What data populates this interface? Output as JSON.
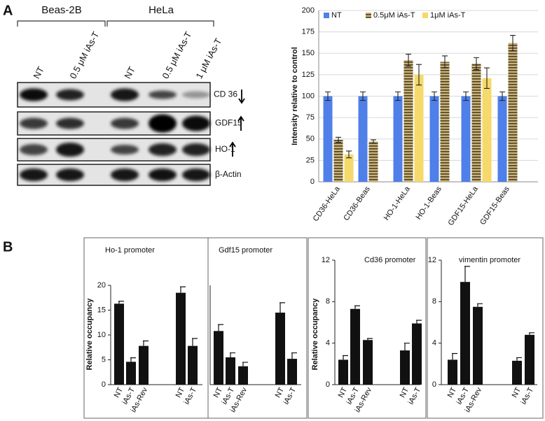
{
  "label_a": "A",
  "label_b": "B",
  "blot": {
    "groups": [
      "Beas-2B",
      "HeLa"
    ],
    "lanes": [
      "NT",
      "0.5 μM iAs-T",
      "NT",
      "0.5 μM iAs-T",
      "1 μM iAs-T"
    ],
    "rows": [
      "CD 36",
      "GDF15",
      "HO-1",
      "β-Actin"
    ]
  },
  "chart_data": [
    {
      "type": "bar",
      "ylabel": "Intensity relative to control",
      "categories": [
        "CD36-HeLa",
        "CD36-Beas",
        "HO-1-HeLa",
        "HO-1-Beas",
        "GDF15-HeLa",
        "GDF15-Beas"
      ],
      "series": [
        {
          "name": "NT",
          "color": "#4f7fe8",
          "values": [
            100,
            100,
            100,
            100,
            100,
            100
          ],
          "errors": [
            5,
            5,
            5,
            5,
            5,
            5
          ]
        },
        {
          "name": "0.5μM iAs-T",
          "color": "#c9b27a",
          "hatch": true,
          "values": [
            49,
            47,
            142,
            140,
            138,
            162
          ],
          "errors": [
            3,
            2,
            7,
            7,
            7,
            9
          ]
        },
        {
          "name": "1μM iAs-T",
          "color": "#f5d96a",
          "values": [
            32,
            null,
            125,
            null,
            121,
            null
          ],
          "errors": [
            4,
            null,
            12,
            null,
            12,
            null
          ]
        }
      ],
      "ylim": [
        0,
        200
      ],
      "yticks": [
        0,
        25,
        50,
        75,
        100,
        125,
        150,
        175,
        200
      ],
      "grid": true,
      "legend": "top"
    },
    {
      "type": "bar",
      "title": "Ho-1 promoter",
      "ylabel": "Relative occupancy",
      "categories": [
        "NT",
        "iAs-T",
        "iAs-Rev",
        "NT",
        "iAs-T"
      ],
      "values": [
        16.3,
        4.6,
        7.8,
        18.5,
        7.8
      ],
      "errors": [
        0.5,
        0.8,
        1.0,
        1.2,
        1.5
      ],
      "color": "#111111",
      "ylim": [
        0,
        20
      ],
      "yticks": [
        0,
        5,
        10,
        15,
        20
      ]
    },
    {
      "type": "bar",
      "title": "Gdf15 promoter",
      "categories": [
        "NT",
        "iAs-T",
        "iAs-Rev",
        "NT",
        "iAs-T"
      ],
      "values": [
        10.8,
        5.5,
        3.7,
        14.5,
        5.2
      ],
      "errors": [
        1.3,
        0.9,
        0.8,
        2.0,
        1.2
      ],
      "color": "#111111",
      "ylim": [
        0,
        20
      ]
    },
    {
      "type": "bar",
      "title": "Cd36 promoter",
      "ylabel": "Relative occupancy",
      "categories": [
        "NT",
        "iAs-T",
        "iAs-Rev",
        "NT",
        "iAs-T"
      ],
      "values": [
        2.4,
        7.3,
        4.3,
        3.3,
        5.9
      ],
      "errors": [
        0.4,
        0.3,
        0.15,
        0.7,
        0.3
      ],
      "color": "#111111",
      "ylim": [
        0,
        12
      ],
      "yticks": [
        0,
        4,
        8,
        12
      ]
    },
    {
      "type": "bar",
      "title": "vimentin promoter",
      "categories": [
        "NT",
        "iAs-T",
        "iAs-Rev",
        "NT",
        "iAs-T"
      ],
      "values": [
        2.4,
        9.9,
        7.5,
        2.3,
        4.8
      ],
      "errors": [
        0.6,
        1.5,
        0.3,
        0.3,
        0.2
      ],
      "color": "#111111",
      "ylim": [
        0,
        12
      ],
      "yticks": [
        0,
        4,
        8,
        12
      ]
    }
  ]
}
